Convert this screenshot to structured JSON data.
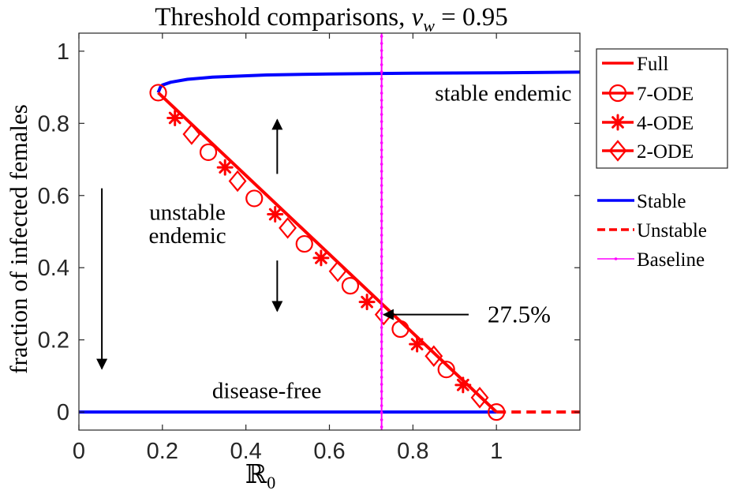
{
  "chart_data": {
    "type": "line",
    "title": "Threshold comparisons, ",
    "title_math": "v",
    "title_math_sub": "w",
    "title_value": " = 0.95",
    "xlabel": "ℝ",
    "xlabel_sub": "0",
    "ylabel": "fraction of infected females",
    "xlim": [
      0,
      1.2
    ],
    "ylim": [
      -0.05,
      1.05
    ],
    "xticks": [
      0,
      0.2,
      0.4,
      0.6,
      0.8,
      1
    ],
    "xtick_labels": [
      "0",
      "0.2",
      "0.4",
      "0.6",
      "0.8",
      "1"
    ],
    "yticks": [
      0,
      0.2,
      0.4,
      0.6,
      0.8,
      1
    ],
    "ytick_labels": [
      "0",
      "0.2",
      "0.4",
      "0.6",
      "0.8",
      "1"
    ],
    "grid": false,
    "legend_position": "right",
    "colors": {
      "red": "#ff0000",
      "blue": "#0000ff",
      "magenta": "#ff00ff",
      "black": "#000000"
    },
    "legend": [
      {
        "label": "Full",
        "style": "solid",
        "color": "#ff0000",
        "marker": "none"
      },
      {
        "label": "7-ODE",
        "style": "solid",
        "color": "#ff0000",
        "marker": "circle"
      },
      {
        "label": "4-ODE",
        "style": "solid",
        "color": "#ff0000",
        "marker": "asterisk"
      },
      {
        "label": "2-ODE",
        "style": "solid",
        "color": "#ff0000",
        "marker": "diamond"
      },
      {
        "label": "Stable",
        "style": "solid",
        "color": "#0000ff",
        "marker": "none"
      },
      {
        "label": "Unstable",
        "style": "dashed",
        "color": "#ff0000",
        "marker": "none"
      },
      {
        "label": "Baseline",
        "style": "solid",
        "color": "#ff00ff",
        "marker": "point"
      }
    ],
    "series": [
      {
        "name": "Stable",
        "color": "#0000ff",
        "style": "solid",
        "curve": "stable_endemic",
        "x": [
          0.19,
          0.195,
          0.2,
          0.22,
          0.26,
          0.32,
          0.45,
          0.6,
          0.8,
          1.0,
          1.2
        ],
        "y": [
          0.885,
          0.9,
          0.906,
          0.914,
          0.922,
          0.928,
          0.934,
          0.937,
          0.939,
          0.94,
          0.942
        ]
      },
      {
        "name": "Stable",
        "color": "#0000ff",
        "style": "solid",
        "curve": "disease_free",
        "x": [
          0,
          1.0
        ],
        "y": [
          0,
          0
        ]
      },
      {
        "name": "Unstable",
        "color": "#ff0000",
        "style": "dashed",
        "x": [
          1.0,
          1.2
        ],
        "y": [
          0,
          0
        ]
      },
      {
        "name": "Full",
        "color": "#ff0000",
        "style": "solid",
        "x": [
          0.19,
          1.0
        ],
        "y": [
          0.885,
          0
        ]
      },
      {
        "name": "7-ODE",
        "color": "#ff0000",
        "marker": "circle",
        "x": [
          0.19,
          0.31,
          0.42,
          0.54,
          0.65,
          0.77,
          0.88,
          1.0
        ],
        "y": [
          0.885,
          0.72,
          0.592,
          0.466,
          0.35,
          0.23,
          0.118,
          0.0
        ]
      },
      {
        "name": "4-ODE",
        "color": "#ff0000",
        "marker": "asterisk",
        "x": [
          0.23,
          0.35,
          0.47,
          0.58,
          0.69,
          0.81,
          0.92
        ],
        "y": [
          0.815,
          0.678,
          0.548,
          0.427,
          0.305,
          0.188,
          0.075
        ]
      },
      {
        "name": "2-ODE",
        "color": "#ff0000",
        "marker": "diamond",
        "x": [
          0.27,
          0.38,
          0.5,
          0.62,
          0.73,
          0.85,
          0.96
        ],
        "y": [
          0.77,
          0.64,
          0.51,
          0.39,
          0.27,
          0.155,
          0.04
        ]
      },
      {
        "name": "Baseline",
        "color": "#ff00ff",
        "marker": "point",
        "vertical_x": 0.725
      }
    ],
    "annotations": [
      {
        "text": "stable endemic",
        "x": 1.18,
        "y": 0.885,
        "anchor": "end"
      },
      {
        "text": "unstable",
        "x": 0.26,
        "y": 0.555,
        "anchor": "middle"
      },
      {
        "text": "endemic",
        "x": 0.26,
        "y": 0.49,
        "anchor": "middle"
      },
      {
        "text": "disease-free",
        "x": 0.45,
        "y": 0.06,
        "anchor": "middle"
      },
      {
        "text": "27.5%",
        "x": 1.13,
        "y": 0.27,
        "anchor": "end"
      }
    ],
    "arrows": [
      {
        "x1": 0.055,
        "y1": 0.62,
        "x2": 0.055,
        "y2": 0.12
      },
      {
        "x1": 0.475,
        "y1": 0.66,
        "x2": 0.475,
        "y2": 0.81
      },
      {
        "x1": 0.475,
        "y1": 0.42,
        "x2": 0.475,
        "y2": 0.28
      },
      {
        "x1": 1.06,
        "y1": 0.27,
        "x2": 0.73,
        "y2": 0.27
      }
    ]
  }
}
